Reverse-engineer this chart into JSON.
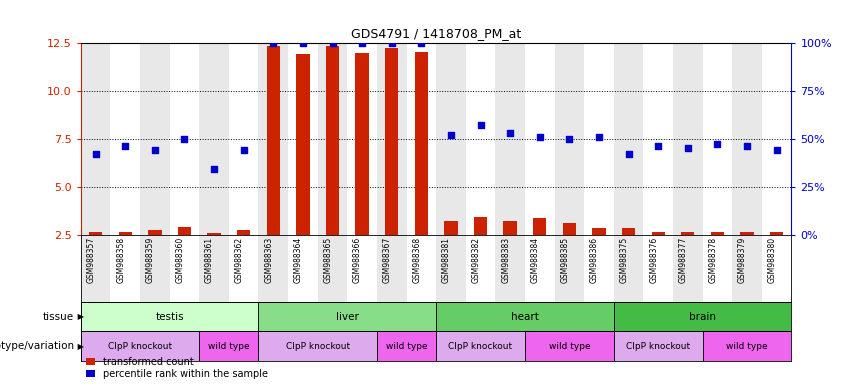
{
  "title": "GDS4791 / 1418708_PM_at",
  "samples": [
    "GSM988357",
    "GSM988358",
    "GSM988359",
    "GSM988360",
    "GSM988361",
    "GSM988362",
    "GSM988363",
    "GSM988364",
    "GSM988365",
    "GSM988366",
    "GSM988367",
    "GSM988368",
    "GSM988381",
    "GSM988382",
    "GSM988383",
    "GSM988384",
    "GSM988385",
    "GSM988386",
    "GSM988375",
    "GSM988376",
    "GSM988377",
    "GSM988378",
    "GSM988379",
    "GSM988380"
  ],
  "transformed_count": [
    2.62,
    2.63,
    2.72,
    2.92,
    2.58,
    2.72,
    12.3,
    11.9,
    12.3,
    11.95,
    12.2,
    12.0,
    3.22,
    3.42,
    3.22,
    3.38,
    3.12,
    2.82,
    2.82,
    2.62,
    2.62,
    2.62,
    2.62,
    2.62
  ],
  "percentile_rank": [
    42,
    46,
    44,
    50,
    34,
    44,
    100,
    100,
    100,
    100,
    100,
    100,
    52,
    57,
    53,
    51,
    50,
    51,
    42,
    46,
    45,
    47,
    46,
    44
  ],
  "tissues": [
    {
      "label": "testis",
      "start": 0,
      "end": 6,
      "color": "#ccffcc"
    },
    {
      "label": "liver",
      "start": 6,
      "end": 12,
      "color": "#88dd88"
    },
    {
      "label": "heart",
      "start": 12,
      "end": 18,
      "color": "#66cc66"
    },
    {
      "label": "brain",
      "start": 18,
      "end": 24,
      "color": "#44bb44"
    }
  ],
  "genotypes": [
    {
      "label": "ClpP knockout",
      "start": 0,
      "end": 4,
      "color": "#ddaaee"
    },
    {
      "label": "wild type",
      "start": 4,
      "end": 6,
      "color": "#ee66ee"
    },
    {
      "label": "ClpP knockout",
      "start": 6,
      "end": 10,
      "color": "#ddaaee"
    },
    {
      "label": "wild type",
      "start": 10,
      "end": 12,
      "color": "#ee66ee"
    },
    {
      "label": "ClpP knockout",
      "start": 12,
      "end": 15,
      "color": "#ddaaee"
    },
    {
      "label": "wild type",
      "start": 15,
      "end": 18,
      "color": "#ee66ee"
    },
    {
      "label": "ClpP knockout",
      "start": 18,
      "end": 21,
      "color": "#ddaaee"
    },
    {
      "label": "wild type",
      "start": 21,
      "end": 24,
      "color": "#ee66ee"
    }
  ],
  "ylim_left": [
    2.5,
    12.5
  ],
  "ylim_right": [
    0,
    100
  ],
  "yticks_left": [
    2.5,
    5.0,
    7.5,
    10.0,
    12.5
  ],
  "yticks_right": [
    0,
    25,
    50,
    75,
    100
  ],
  "bar_color": "#cc2200",
  "dot_color": "#0000cc",
  "sample_bg_odd": "#e8e8e8",
  "sample_bg_even": "#ffffff"
}
